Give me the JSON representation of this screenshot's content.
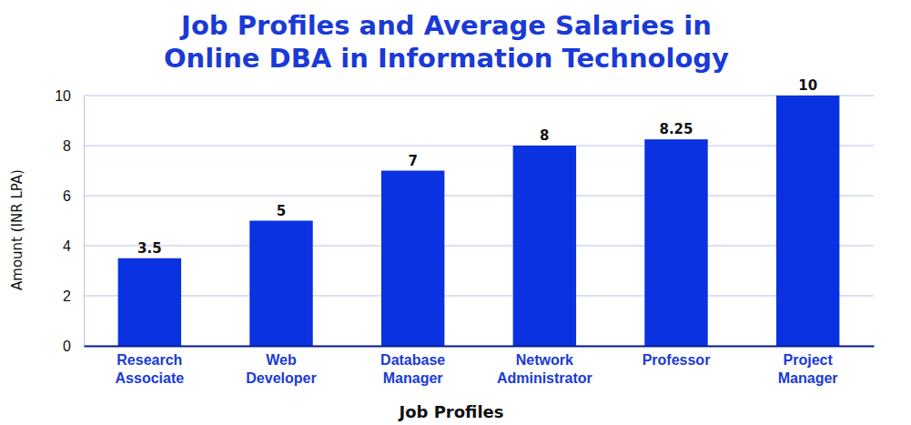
{
  "chart_data": {
    "type": "bar",
    "title": "Job Profiles and Average Salaries in Online DBA in Information Technology",
    "x_label": "Job Profiles",
    "y_label": "Amount (INR LPA)",
    "categories": [
      "Research Associate",
      "Web Developer",
      "Database Manager",
      "Network Administrator",
      "Professor",
      "Project Manager"
    ],
    "values": [
      3.5,
      5,
      7,
      8,
      8.25,
      10
    ],
    "color": "#0a32e0",
    "ylim": [
      0,
      10
    ],
    "yticks": [
      0,
      2,
      4,
      6,
      8,
      10
    ],
    "grid": true,
    "data_labels": true
  }
}
